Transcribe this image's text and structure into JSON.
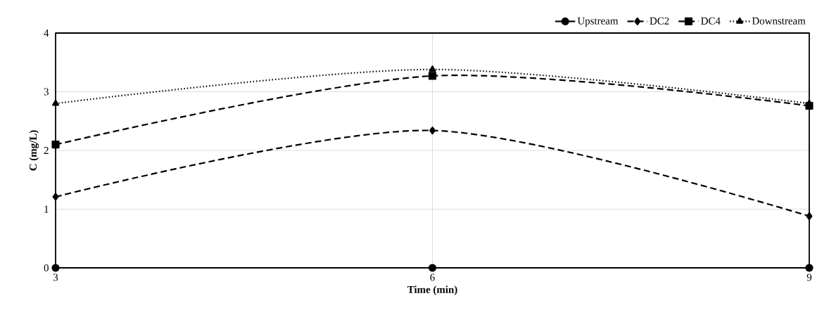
{
  "chart_data": {
    "type": "line",
    "xlabel": "Time (min)",
    "ylabel": "C (mg/L)",
    "x": [
      3,
      6,
      9
    ],
    "xlim": [
      3,
      9
    ],
    "xticks": [
      3,
      6,
      9
    ],
    "ylim": [
      0,
      4
    ],
    "yticks": [
      0,
      1,
      2,
      3,
      4
    ],
    "grid": true,
    "legend": "top right",
    "series": [
      {
        "name": "Upstream",
        "color": "#000000",
        "values": [
          0,
          0,
          0
        ],
        "marker": "circle",
        "line_style": "solid"
      },
      {
        "name": "DC2",
        "color": "#000000",
        "values": [
          1.21,
          2.34,
          0.88
        ],
        "marker": "diamond",
        "line_style": "dashed"
      },
      {
        "name": "DC4",
        "color": "#000000",
        "values": [
          2.1,
          3.27,
          2.76
        ],
        "marker": "square",
        "line_style": "dashed"
      },
      {
        "name": "Downstream",
        "color": "#000000",
        "values": [
          2.8,
          3.38,
          2.8
        ],
        "marker": "triangle",
        "line_style": "dotted"
      }
    ]
  }
}
